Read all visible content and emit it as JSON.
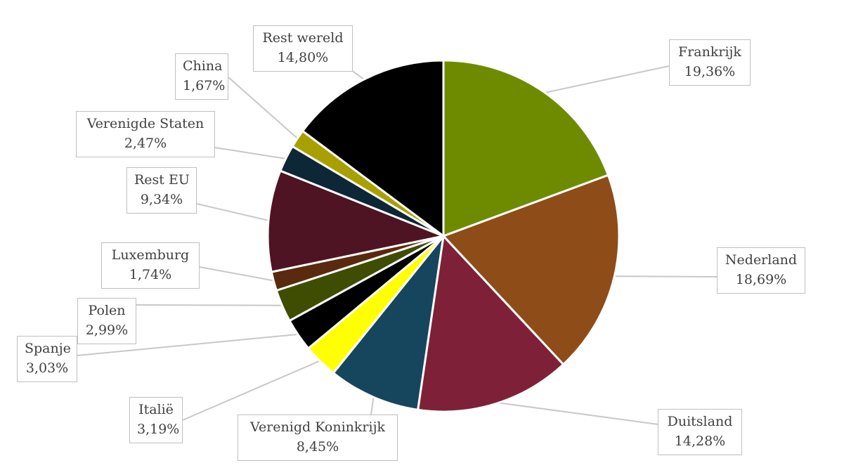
{
  "chart_data": {
    "type": "pie",
    "title": "",
    "slices": [
      {
        "label": "Frankrijk",
        "value": 19.36,
        "display": "19,36%",
        "color": "#6e8b00"
      },
      {
        "label": "Nederland",
        "value": 18.69,
        "display": "18,69%",
        "color": "#8e4c18"
      },
      {
        "label": "Duitsland",
        "value": 14.28,
        "display": "14,28%",
        "color": "#7e2138"
      },
      {
        "label": "Verenigd Koninkrijk",
        "value": 8.45,
        "display": "8,45%",
        "color": "#15465e"
      },
      {
        "label": "Italië",
        "value": 3.19,
        "display": "3,19%",
        "color": "#ffff00"
      },
      {
        "label": "Spanje",
        "value": 3.03,
        "display": "3,03%",
        "color": "#000000"
      },
      {
        "label": "Polen",
        "value": 2.99,
        "display": "2,99%",
        "color": "#3e4d02"
      },
      {
        "label": "Luxemburg",
        "value": 1.74,
        "display": "1,74%",
        "color": "#5a2a0f"
      },
      {
        "label": "Rest EU",
        "value": 9.34,
        "display": "9,34%",
        "color": "#4e1423"
      },
      {
        "label": "Verenigde Staten",
        "value": 2.47,
        "display": "2,47%",
        "color": "#0d2736"
      },
      {
        "label": "China",
        "value": 1.67,
        "display": "1,67%",
        "color": "#a8a000"
      },
      {
        "label": "Rest wereld",
        "value": 14.8,
        "display": "14,80%",
        "color": "#000000"
      }
    ],
    "legend": "none",
    "data_labels": "callout"
  }
}
